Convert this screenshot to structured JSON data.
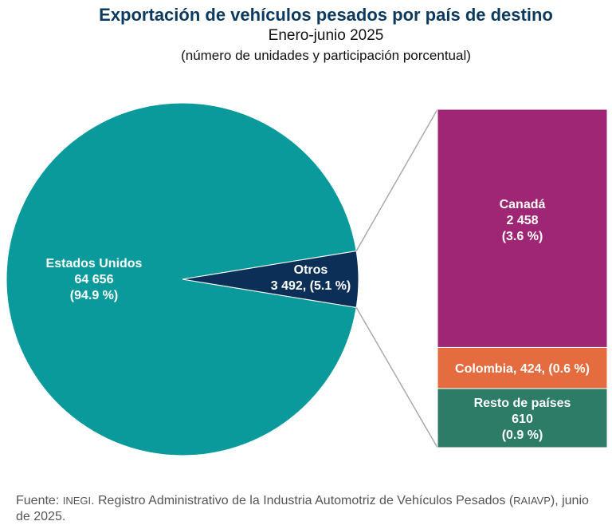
{
  "chart_data": {
    "type": "pie",
    "title": "Exportación de vehículos pesados por país de destino",
    "subtitle": "Enero-junio 2025",
    "subtitle2": "(número de unidades y participación porcentual)",
    "slices": [
      {
        "name": "Estados Unidos",
        "value": 64656,
        "value_label": "64 656",
        "pct_label": "(94.9 %)",
        "color": "#0a9a9c"
      },
      {
        "name": "Otros",
        "value": 3492,
        "value_label": "3 492, (5.1 %)",
        "color": "#0c2f57"
      }
    ],
    "breakdown": [
      {
        "name": "Canadá",
        "value": 2458,
        "value_label": "2 458",
        "pct_label": "(3.6 %)",
        "color": "#9e2674"
      },
      {
        "name": "Colombia",
        "value": 424,
        "value_label": "Colombia,  424, (0.6 %)",
        "color": "#e46c3e"
      },
      {
        "name": "Resto de países",
        "value": 610,
        "value_label": "610",
        "pct_label": "(0.9 %)",
        "color": "#2c7c68"
      }
    ]
  },
  "source": {
    "prefix": "Fuente: ",
    "org": "INEGI",
    "text": ". Registro Administrativo de la Industria Automotriz de Vehículos Pesados (",
    "abbr": "RAIAVP",
    "suffix": "), junio de 2025."
  }
}
